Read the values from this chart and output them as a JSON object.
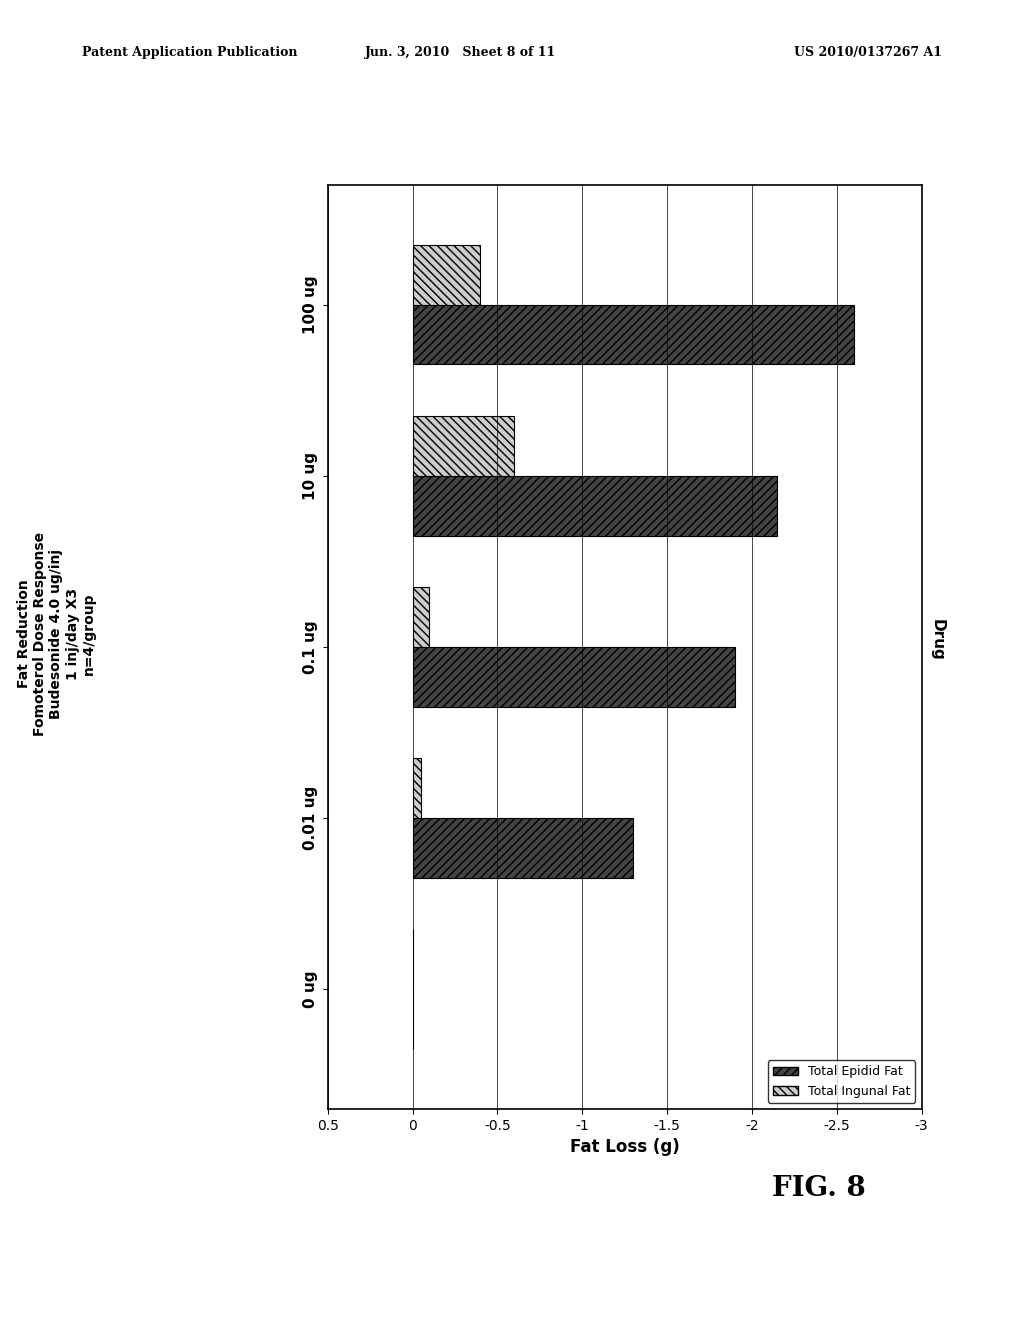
{
  "title_lines": [
    "Fat Reduction",
    "Fomoterol Dose Response",
    "Budesonide 4.0 ug/inj",
    "1 inj/day X3",
    "n=4/group"
  ],
  "drug_label": "Drug",
  "xlabel": "Fat Loss (g)",
  "categories": [
    "0 ug",
    "0.01 ug",
    "0.1 ug",
    "10 ug",
    "100 ug"
  ],
  "epidid_fat": [
    0.0,
    -1.3,
    -1.9,
    -2.15,
    -2.6
  ],
  "ingunal_fat": [
    0.0,
    -0.05,
    -0.1,
    -0.6,
    -0.4
  ],
  "xlim_left": -3.0,
  "xlim_right": 0.5,
  "xticks": [
    0.5,
    0.0,
    -0.5,
    -1.0,
    -1.5,
    -2.0,
    -2.5,
    -3.0
  ],
  "xtick_labels": [
    "0.5",
    "0",
    "-0.5",
    "-1",
    "-1.5",
    "-2",
    "-2.5",
    "-3"
  ],
  "bar_height": 0.35,
  "background_color": "#ffffff",
  "legend_labels": [
    "Total Epidid Fat",
    "Total Ingunal Fat"
  ],
  "fig_width": 10.24,
  "fig_height": 13.2,
  "header_left": "Patent Application Publication",
  "header_mid": "Jun. 3, 2010   Sheet 8 of 11",
  "header_right": "US 2010/0137267 A1",
  "fig8_label": "FIG. 8"
}
